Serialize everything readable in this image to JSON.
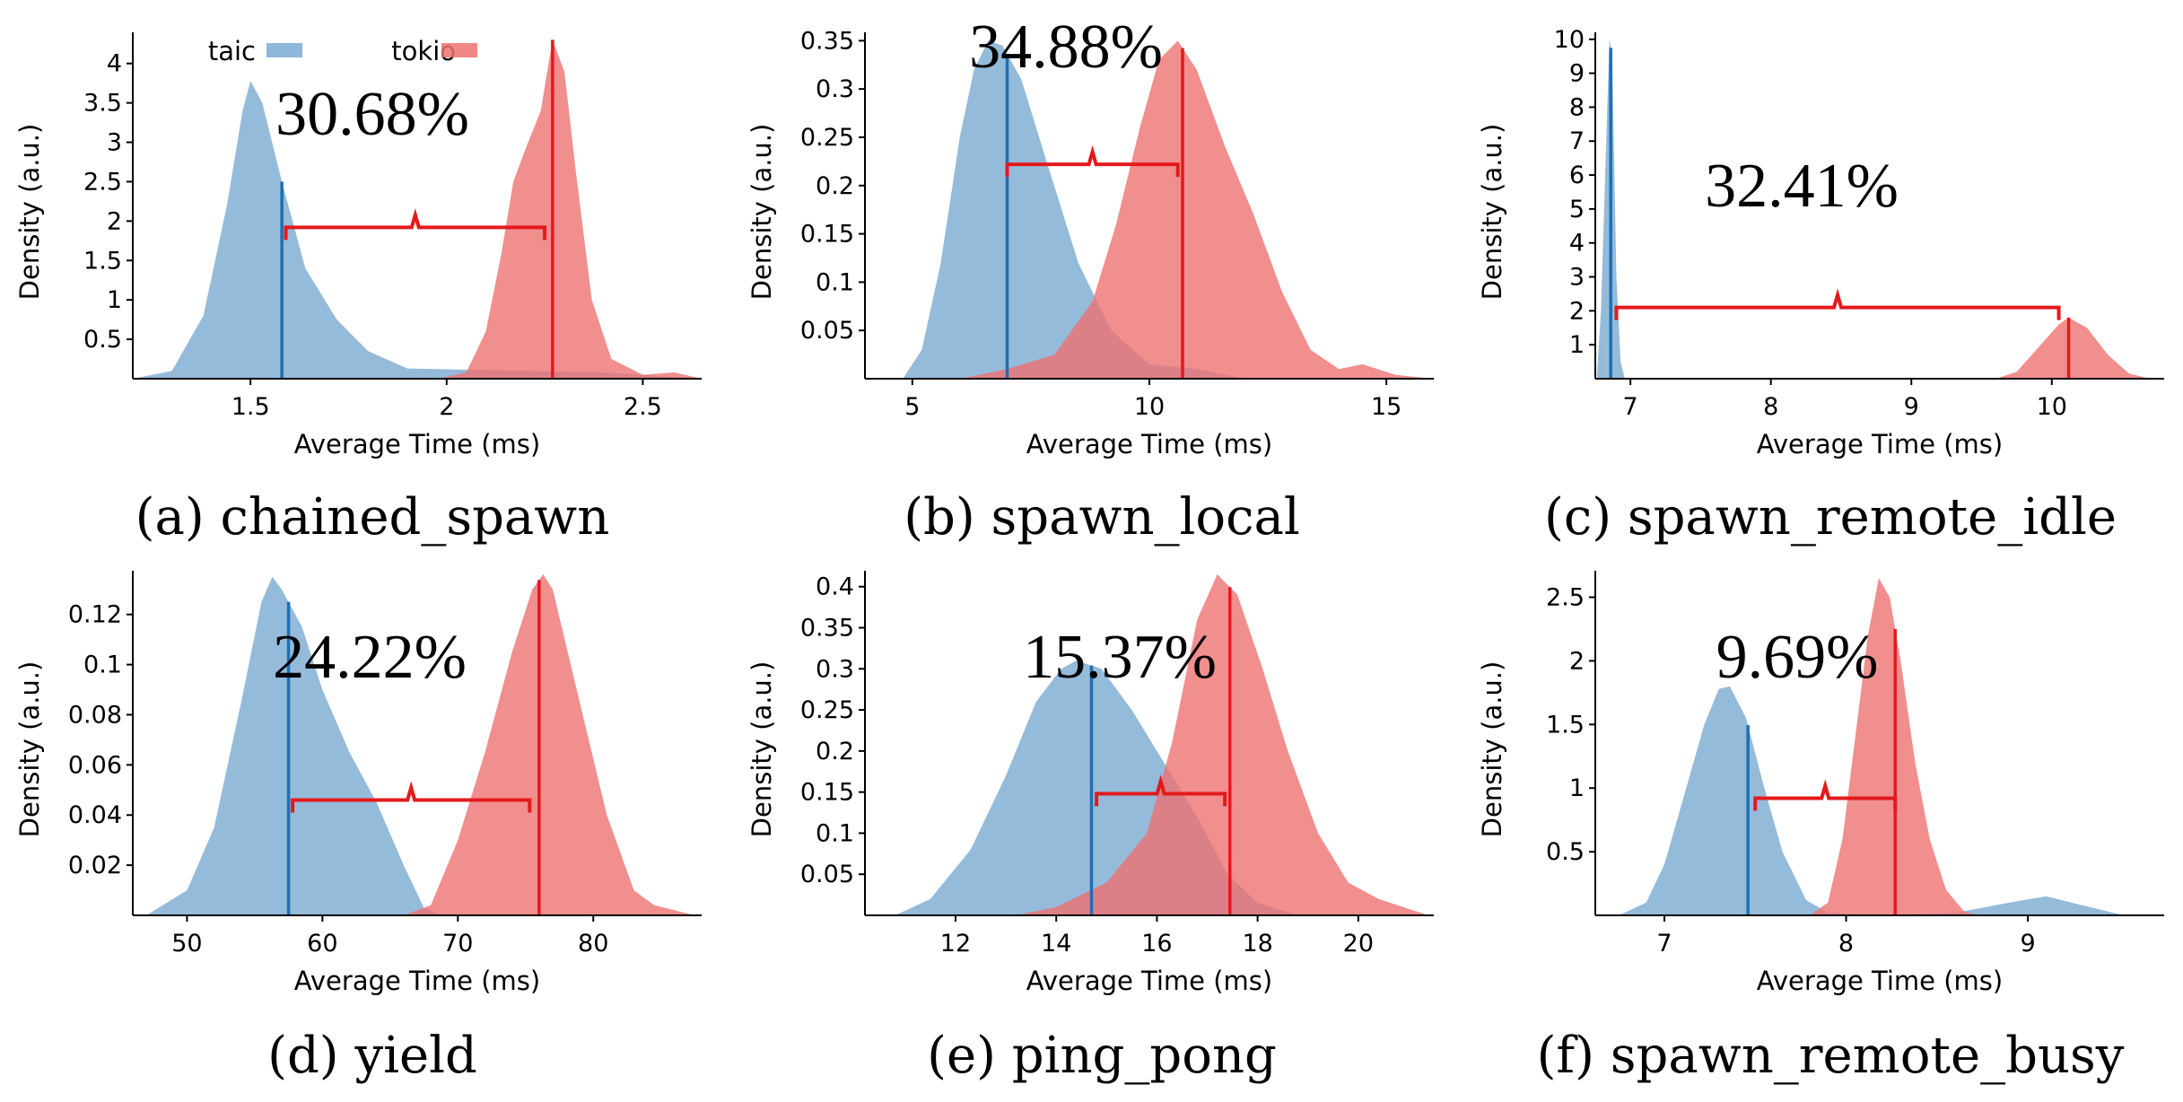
{
  "colors": {
    "taic": "#7aaad2",
    "tokio": "#ee7272",
    "taic_line": "#1f6fb2",
    "tokio_line": "#e31a1c",
    "bracket": "#e31a1c"
  },
  "chart_data": [
    {
      "type": "area",
      "caption": "(a) chained_spawn",
      "xlabel": "Average Time (ms)",
      "ylabel": "Density (a.u.)",
      "xlim": [
        1.2,
        2.65
      ],
      "ylim": [
        0,
        4.35
      ],
      "xticks": [
        1.5,
        2,
        2.5
      ],
      "xtick_labels": [
        "1.5",
        "2",
        "2.5"
      ],
      "yticks": [
        0.5,
        1,
        1.5,
        2,
        2.5,
        3,
        3.5,
        4
      ],
      "ytick_labels": [
        "0.5",
        "1",
        "1.5",
        "2",
        "2.5",
        "3",
        "3.5",
        "4"
      ],
      "legend": [
        {
          "name": "taic",
          "series": "taic"
        },
        {
          "name": "tokio",
          "series": "tokio"
        }
      ],
      "series": [
        {
          "name": "taic",
          "color": "#7aaad2",
          "mean": 1.58,
          "points": [
            [
              1.2,
              0
            ],
            [
              1.3,
              0.1
            ],
            [
              1.38,
              0.8
            ],
            [
              1.44,
              2.2
            ],
            [
              1.48,
              3.4
            ],
            [
              1.5,
              3.78
            ],
            [
              1.53,
              3.5
            ],
            [
              1.58,
              2.5
            ],
            [
              1.64,
              1.4
            ],
            [
              1.72,
              0.75
            ],
            [
              1.8,
              0.35
            ],
            [
              1.9,
              0.13
            ],
            [
              2.0,
              0.12
            ],
            [
              2.2,
              0.1
            ],
            [
              2.4,
              0.08
            ],
            [
              2.55,
              0.03
            ],
            [
              2.65,
              0
            ]
          ]
        },
        {
          "name": "tokio",
          "color": "#ee7272",
          "mean": 2.27,
          "points": [
            [
              1.98,
              0
            ],
            [
              2.05,
              0.08
            ],
            [
              2.1,
              0.6
            ],
            [
              2.14,
              1.6
            ],
            [
              2.17,
              2.5
            ],
            [
              2.2,
              2.9
            ],
            [
              2.24,
              3.4
            ],
            [
              2.27,
              4.3
            ],
            [
              2.3,
              3.9
            ],
            [
              2.33,
              2.6
            ],
            [
              2.37,
              1.0
            ],
            [
              2.42,
              0.25
            ],
            [
              2.5,
              0.05
            ],
            [
              2.58,
              0.08
            ],
            [
              2.65,
              0
            ]
          ]
        }
      ],
      "gap": {
        "label": "30.68%",
        "from": 1.59,
        "to": 2.25,
        "y": 1.92
      }
    },
    {
      "type": "area",
      "caption": "(b) spawn_local",
      "xlabel": "Average Time (ms)",
      "ylabel": "Density (a.u.)",
      "xlim": [
        4,
        16
      ],
      "ylim": [
        0,
        0.355
      ],
      "xticks": [
        5,
        10,
        15
      ],
      "xtick_labels": [
        "5",
        "10",
        "15"
      ],
      "yticks": [
        0.05,
        0.1,
        0.15,
        0.2,
        0.25,
        0.3,
        0.35
      ],
      "ytick_labels": [
        "0.05",
        "0.1",
        "0.15",
        "0.2",
        "0.25",
        "0.3",
        "0.35"
      ],
      "series": [
        {
          "name": "taic",
          "color": "#7aaad2",
          "mean": 7.0,
          "points": [
            [
              4.8,
              0
            ],
            [
              5.2,
              0.03
            ],
            [
              5.6,
              0.12
            ],
            [
              6.0,
              0.25
            ],
            [
              6.3,
              0.32
            ],
            [
              6.6,
              0.35
            ],
            [
              6.9,
              0.345
            ],
            [
              7.3,
              0.31
            ],
            [
              7.8,
              0.23
            ],
            [
              8.5,
              0.12
            ],
            [
              9.2,
              0.05
            ],
            [
              10.0,
              0.015
            ],
            [
              11.0,
              0.01
            ],
            [
              12.0,
              0
            ],
            [
              16,
              0
            ]
          ]
        },
        {
          "name": "tokio",
          "color": "#ee7272",
          "mean": 10.7,
          "points": [
            [
              6.0,
              0
            ],
            [
              7.0,
              0.01
            ],
            [
              8.0,
              0.025
            ],
            [
              8.8,
              0.08
            ],
            [
              9.3,
              0.16
            ],
            [
              9.8,
              0.26
            ],
            [
              10.2,
              0.33
            ],
            [
              10.6,
              0.35
            ],
            [
              11.0,
              0.32
            ],
            [
              11.6,
              0.24
            ],
            [
              12.2,
              0.17
            ],
            [
              12.8,
              0.09
            ],
            [
              13.4,
              0.03
            ],
            [
              14.0,
              0.01
            ],
            [
              14.5,
              0.015
            ],
            [
              15.2,
              0.004
            ],
            [
              16,
              0
            ]
          ]
        }
      ],
      "gap": {
        "label": "34.88%",
        "from": 7.0,
        "to": 10.6,
        "y": 0.222
      }
    },
    {
      "type": "area",
      "caption": "(c) spawn_remote_idle",
      "xlabel": "Average Time (ms)",
      "ylabel": "Density (a.u.)",
      "xlim": [
        6.75,
        10.8
      ],
      "ylim": [
        0,
        10.1
      ],
      "xticks": [
        7,
        8,
        9,
        10
      ],
      "xtick_labels": [
        "7",
        "8",
        "9",
        "10"
      ],
      "yticks": [
        1,
        2,
        3,
        4,
        5,
        6,
        7,
        8,
        9,
        10
      ],
      "ytick_labels": [
        "1",
        "2",
        "3",
        "4",
        "5",
        "6",
        "7",
        "8",
        "9",
        "10"
      ],
      "series": [
        {
          "name": "taic",
          "color": "#7aaad2",
          "mean": 6.86,
          "points": [
            [
              6.76,
              0
            ],
            [
              6.79,
              2
            ],
            [
              6.82,
              6
            ],
            [
              6.85,
              10
            ],
            [
              6.87,
              9.5
            ],
            [
              6.9,
              3
            ],
            [
              6.93,
              0.5
            ],
            [
              6.96,
              0
            ],
            [
              10.8,
              0
            ]
          ]
        },
        {
          "name": "tokio",
          "color": "#ee7272",
          "mean": 10.12,
          "points": [
            [
              9.6,
              0
            ],
            [
              9.75,
              0.2
            ],
            [
              9.9,
              0.9
            ],
            [
              10.05,
              1.6
            ],
            [
              10.12,
              1.8
            ],
            [
              10.25,
              1.5
            ],
            [
              10.4,
              0.7
            ],
            [
              10.55,
              0.15
            ],
            [
              10.7,
              0
            ]
          ]
        }
      ],
      "gap": {
        "label": "32.41%",
        "from": 6.9,
        "to": 10.05,
        "y": 2.1
      }
    },
    {
      "type": "area",
      "caption": "(d) yield",
      "xlabel": "Average Time (ms)",
      "ylabel": "Density (a.u.)",
      "xlim": [
        46,
        88
      ],
      "ylim": [
        0,
        0.136
      ],
      "xticks": [
        50,
        60,
        70,
        80
      ],
      "xtick_labels": [
        "50",
        "60",
        "70",
        "80"
      ],
      "yticks": [
        0.02,
        0.04,
        0.06,
        0.08,
        0.1,
        0.12
      ],
      "ytick_labels": [
        "0.02",
        "0.04",
        "0.06",
        "0.08",
        "0.1",
        "0.12"
      ],
      "series": [
        {
          "name": "taic",
          "color": "#7aaad2",
          "mean": 57.5,
          "points": [
            [
              47,
              0
            ],
            [
              50,
              0.01
            ],
            [
              52,
              0.035
            ],
            [
              54,
              0.085
            ],
            [
              55.5,
              0.125
            ],
            [
              56.3,
              0.135
            ],
            [
              57,
              0.13
            ],
            [
              58.5,
              0.115
            ],
            [
              60,
              0.09
            ],
            [
              62,
              0.065
            ],
            [
              64,
              0.045
            ],
            [
              66,
              0.02
            ],
            [
              67.5,
              0.003
            ],
            [
              69,
              0
            ],
            [
              88,
              0
            ]
          ]
        },
        {
          "name": "tokio",
          "color": "#ee7272",
          "mean": 76.0,
          "points": [
            [
              66,
              0
            ],
            [
              68,
              0.004
            ],
            [
              70,
              0.03
            ],
            [
              72,
              0.065
            ],
            [
              74,
              0.105
            ],
            [
              75.5,
              0.13
            ],
            [
              76.3,
              0.136
            ],
            [
              77,
              0.13
            ],
            [
              79,
              0.085
            ],
            [
              81,
              0.04
            ],
            [
              83,
              0.01
            ],
            [
              84.5,
              0.004
            ],
            [
              86,
              0.002
            ],
            [
              87.5,
              0
            ]
          ]
        }
      ],
      "gap": {
        "label": "24.22%",
        "from": 57.8,
        "to": 75.3,
        "y": 0.046
      }
    },
    {
      "type": "area",
      "caption": "(e) ping_pong",
      "xlabel": "Average Time (ms)",
      "ylabel": "Density (a.u.)",
      "xlim": [
        10.2,
        21.5
      ],
      "ylim": [
        0,
        0.415
      ],
      "xticks": [
        12,
        14,
        16,
        18,
        20
      ],
      "xtick_labels": [
        "12",
        "14",
        "16",
        "18",
        "20"
      ],
      "yticks": [
        0.05,
        0.1,
        0.15,
        0.2,
        0.25,
        0.3,
        0.35,
        0.4
      ],
      "ytick_labels": [
        "0.05",
        "0.1",
        "0.15",
        "0.2",
        "0.25",
        "0.3",
        "0.35",
        "0.4"
      ],
      "series": [
        {
          "name": "taic",
          "color": "#7aaad2",
          "mean": 14.7,
          "points": [
            [
              10.8,
              0
            ],
            [
              11.5,
              0.02
            ],
            [
              12.3,
              0.08
            ],
            [
              13.0,
              0.17
            ],
            [
              13.6,
              0.26
            ],
            [
              14.1,
              0.3
            ],
            [
              14.4,
              0.31
            ],
            [
              14.9,
              0.3
            ],
            [
              15.5,
              0.25
            ],
            [
              16.2,
              0.18
            ],
            [
              16.8,
              0.12
            ],
            [
              17.4,
              0.05
            ],
            [
              18.0,
              0.015
            ],
            [
              18.8,
              0
            ],
            [
              21.5,
              0
            ]
          ]
        },
        {
          "name": "tokio",
          "color": "#ee7272",
          "mean": 17.45,
          "points": [
            [
              13.2,
              0
            ],
            [
              14.0,
              0.01
            ],
            [
              15.0,
              0.04
            ],
            [
              15.8,
              0.1
            ],
            [
              16.3,
              0.21
            ],
            [
              16.8,
              0.36
            ],
            [
              17.2,
              0.415
            ],
            [
              17.6,
              0.39
            ],
            [
              18.1,
              0.3
            ],
            [
              18.6,
              0.2
            ],
            [
              19.2,
              0.1
            ],
            [
              19.8,
              0.04
            ],
            [
              20.4,
              0.02
            ],
            [
              21.0,
              0.008
            ],
            [
              21.4,
              0
            ]
          ]
        }
      ],
      "gap": {
        "label": "15.37%",
        "from": 14.8,
        "to": 17.35,
        "y": 0.148
      }
    },
    {
      "type": "area",
      "caption": "(f) spawn_remote_busy",
      "xlabel": "Average Time (ms)",
      "ylabel": "Density (a.u.)",
      "xlim": [
        6.62,
        9.75
      ],
      "ylim": [
        0,
        2.68
      ],
      "xticks": [
        7,
        8,
        9
      ],
      "xtick_labels": [
        "7",
        "8",
        "9"
      ],
      "yticks": [
        0.5,
        1,
        1.5,
        2,
        2.5
      ],
      "ytick_labels": [
        "0.5",
        "1",
        "1.5",
        "2",
        "2.5"
      ],
      "series": [
        {
          "name": "taic",
          "color": "#7aaad2",
          "mean": 7.46,
          "points": [
            [
              6.75,
              0
            ],
            [
              6.9,
              0.1
            ],
            [
              7.0,
              0.4
            ],
            [
              7.12,
              1.0
            ],
            [
              7.22,
              1.5
            ],
            [
              7.3,
              1.78
            ],
            [
              7.36,
              1.8
            ],
            [
              7.45,
              1.55
            ],
            [
              7.55,
              1.0
            ],
            [
              7.65,
              0.5
            ],
            [
              7.78,
              0.12
            ],
            [
              7.9,
              0.02
            ],
            [
              8.2,
              0
            ],
            [
              8.6,
              0.02
            ],
            [
              8.9,
              0.1
            ],
            [
              9.1,
              0.15
            ],
            [
              9.3,
              0.08
            ],
            [
              9.5,
              0.01
            ],
            [
              9.6,
              0
            ]
          ]
        },
        {
          "name": "tokio",
          "color": "#ee7272",
          "mean": 8.27,
          "points": [
            [
              7.8,
              0
            ],
            [
              7.9,
              0.1
            ],
            [
              7.98,
              0.6
            ],
            [
              8.05,
              1.4
            ],
            [
              8.12,
              2.2
            ],
            [
              8.18,
              2.65
            ],
            [
              8.24,
              2.5
            ],
            [
              8.3,
              2.0
            ],
            [
              8.38,
              1.2
            ],
            [
              8.46,
              0.6
            ],
            [
              8.55,
              0.2
            ],
            [
              8.65,
              0.03
            ],
            [
              8.72,
              0
            ]
          ]
        }
      ],
      "gap": {
        "label": "9.69%",
        "from": 7.5,
        "to": 8.27,
        "y": 0.92
      }
    }
  ]
}
